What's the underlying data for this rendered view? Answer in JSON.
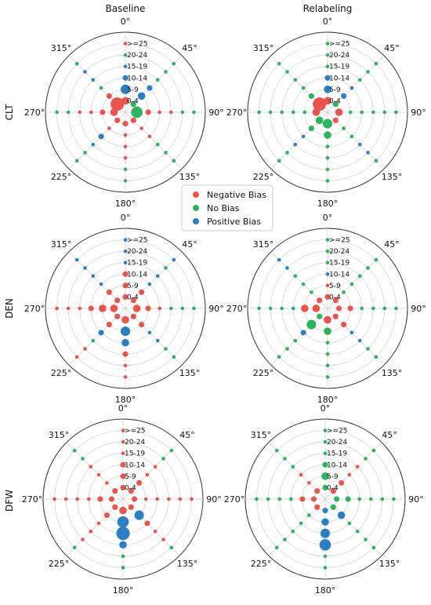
{
  "column_titles": [
    "Baseline",
    "Relabeling"
  ],
  "row_labels": [
    "CLT",
    "DEN",
    "DFW"
  ],
  "legend": [
    {
      "label": "Negative Bias",
      "color": "#e8554e"
    },
    {
      "label": "No Bias",
      "color": "#2db35d"
    },
    {
      "label": "Positive Bias",
      "color": "#2e7fc2"
    }
  ],
  "angle_labels": [
    "0°",
    "45°",
    "90°",
    "135°",
    "180°",
    "225°",
    "270°",
    "315°"
  ],
  "ring_labels": [
    "0-4",
    "5-9",
    "10-14",
    "15-19",
    "20-24",
    ">=25"
  ],
  "chart_data": [
    {
      "type": "scatter",
      "row": "CLT",
      "column": "Baseline",
      "points_encoding": "For each wind direction, values list the bias class per wind-speed ring (0-4 … >=25); size is the relative marker size.",
      "directions": [
        0,
        45,
        90,
        135,
        180,
        225,
        270,
        315
      ],
      "rings": [
        "0-4",
        "5-9",
        "10-14",
        "15-19",
        "20-24",
        ">=25"
      ],
      "classes": {
        "0": [
          "neg",
          "pos",
          "pos",
          "pos",
          "grn",
          "neg"
        ],
        "45": [
          "grn",
          "pos",
          "pos",
          "grn",
          "grn",
          "grn"
        ],
        "90": [
          "grn",
          "neg",
          "neg",
          "neg",
          "grn",
          "grn"
        ],
        "135": [
          "neg",
          "neg",
          "neg",
          "grn",
          "grn",
          "grn"
        ],
        "180": [
          "neg",
          "neg",
          "neg",
          "neg",
          "grn",
          "grn"
        ],
        "225": [
          "neg",
          "neg",
          "pos",
          "pos",
          "grn",
          "grn"
        ],
        "270": [
          "neg",
          "neg",
          "neg",
          "neg",
          "grn",
          "grn"
        ],
        "315": [
          "neg",
          "neg",
          "grn",
          "pos",
          "pos",
          "grn"
        ]
      },
      "sizes": {
        "0": [
          3,
          4,
          2,
          1,
          1,
          1
        ],
        "45": [
          2,
          3,
          2,
          1,
          1,
          1
        ],
        "90": [
          5,
          2,
          1,
          1,
          1,
          1
        ],
        "135": [
          2,
          1,
          1,
          1,
          1,
          1
        ],
        "180": [
          2,
          1,
          1,
          1,
          1,
          1
        ],
        "225": [
          2,
          1,
          2,
          1,
          1,
          1
        ],
        "270": [
          3,
          2,
          1,
          1,
          1,
          1
        ],
        "315": [
          6,
          2,
          1,
          1,
          1,
          1
        ]
      }
    },
    {
      "type": "scatter",
      "row": "CLT",
      "column": "Relabeling",
      "directions": [
        0,
        45,
        90,
        135,
        180,
        225,
        270,
        315
      ],
      "rings": [
        "0-4",
        "5-9",
        "10-14",
        "15-19",
        "20-24",
        ">=25"
      ],
      "classes": {
        "0": [
          "neg",
          "pos",
          "pos",
          "grn",
          "grn",
          "grn"
        ],
        "45": [
          "grn",
          "pos",
          "pos",
          "grn",
          "grn",
          "grn"
        ],
        "90": [
          "neg",
          "grn",
          "grn",
          "grn",
          "grn",
          "grn"
        ],
        "135": [
          "neg",
          "grn",
          "grn",
          "pos",
          "pos",
          "grn"
        ],
        "180": [
          "grn",
          "grn",
          "grn",
          "grn",
          "grn",
          "grn"
        ],
        "225": [
          "grn",
          "grn",
          "pos",
          "pos",
          "grn",
          "grn"
        ],
        "270": [
          "neg",
          "grn",
          "grn",
          "grn",
          "grn",
          "grn"
        ],
        "315": [
          "neg",
          "grn",
          "grn",
          "grn",
          "grn",
          "grn"
        ]
      },
      "sizes": {
        "0": [
          3,
          3,
          2,
          1,
          1,
          1
        ],
        "45": [
          2,
          2,
          1,
          1,
          1,
          1
        ],
        "90": [
          3,
          1,
          1,
          1,
          1,
          1
        ],
        "135": [
          2,
          1,
          1,
          1,
          1,
          1
        ],
        "180": [
          4,
          3,
          1,
          1,
          1,
          1
        ],
        "225": [
          3,
          2,
          1,
          1,
          1,
          1
        ],
        "270": [
          3,
          1,
          1,
          1,
          1,
          1
        ],
        "315": [
          6,
          2,
          1,
          1,
          1,
          1
        ]
      }
    },
    {
      "type": "scatter",
      "row": "DEN",
      "column": "Baseline",
      "directions": [
        0,
        45,
        90,
        135,
        180,
        225,
        270,
        315
      ],
      "rings": [
        "0-4",
        "5-9",
        "10-14",
        "15-19",
        "20-24",
        ">=25"
      ],
      "classes": {
        "0": [
          "neg",
          "neg",
          "neg",
          "pos",
          "pos",
          "pos"
        ],
        "45": [
          "neg",
          "neg",
          "pos",
          "pos",
          "grn",
          "pos"
        ],
        "90": [
          "neg",
          "neg",
          "neg",
          "grn",
          "grn",
          "grn"
        ],
        "135": [
          "neg",
          "neg",
          "pos",
          "pos",
          "grn",
          "grn"
        ],
        "180": [
          "neg",
          "pos",
          "pos",
          "neg",
          "neg",
          "neg"
        ],
        "225": [
          "neg",
          "neg",
          "pos",
          "grn",
          "neg",
          "neg"
        ],
        "270": [
          "neg",
          "neg",
          "neg",
          "neg",
          "neg",
          "neg"
        ],
        "315": [
          "neg",
          "neg",
          "pos",
          "pos",
          "pos",
          "pos"
        ]
      },
      "sizes": {
        "0": [
          2,
          2,
          2,
          1,
          1,
          1
        ],
        "45": [
          2,
          2,
          1,
          1,
          1,
          1
        ],
        "90": [
          3,
          2,
          1,
          1,
          1,
          1
        ],
        "135": [
          2,
          2,
          1,
          1,
          1,
          1
        ],
        "180": [
          3,
          4,
          3,
          2,
          1,
          1
        ],
        "225": [
          2,
          2,
          2,
          1,
          1,
          1
        ],
        "270": [
          3,
          3,
          2,
          1,
          1,
          1
        ],
        "315": [
          2,
          2,
          1,
          1,
          1,
          1
        ]
      }
    },
    {
      "type": "scatter",
      "row": "DEN",
      "column": "Relabeling",
      "directions": [
        0,
        45,
        90,
        135,
        180,
        225,
        270,
        315
      ],
      "rings": [
        "0-4",
        "5-9",
        "10-14",
        "15-19",
        "20-24",
        ">=25"
      ],
      "classes": {
        "0": [
          "neg",
          "neg",
          "pos",
          "grn",
          "grn",
          "grn"
        ],
        "45": [
          "neg",
          "grn",
          "grn",
          "grn",
          "grn",
          "grn"
        ],
        "90": [
          "neg",
          "neg",
          "grn",
          "grn",
          "grn",
          "grn"
        ],
        "135": [
          "neg",
          "neg",
          "pos",
          "pos",
          "grn",
          "grn"
        ],
        "180": [
          "neg",
          "grn",
          "grn",
          "grn",
          "grn",
          "grn"
        ],
        "225": [
          "grn",
          "grn",
          "pos",
          "grn",
          "grn",
          "grn"
        ],
        "270": [
          "neg",
          "neg",
          "grn",
          "grn",
          "grn",
          "grn"
        ],
        "315": [
          "neg",
          "grn",
          "grn",
          "grn",
          "pos",
          "pos"
        ]
      },
      "sizes": {
        "0": [
          2,
          1,
          1,
          1,
          1,
          1
        ],
        "45": [
          2,
          1,
          1,
          1,
          1,
          1
        ],
        "90": [
          2,
          2,
          1,
          1,
          1,
          1
        ],
        "135": [
          2,
          2,
          1,
          1,
          1,
          1
        ],
        "180": [
          3,
          3,
          1,
          1,
          1,
          1
        ],
        "225": [
          2,
          4,
          2,
          1,
          1,
          1
        ],
        "270": [
          3,
          3,
          1,
          1,
          1,
          1
        ],
        "315": [
          2,
          1,
          1,
          1,
          1,
          1
        ]
      }
    },
    {
      "type": "scatter",
      "row": "DFW",
      "column": "Baseline",
      "directions": [
        0,
        45,
        90,
        135,
        180,
        225,
        270,
        315
      ],
      "rings": [
        "0-4",
        "5-9",
        "10-14",
        "15-19",
        "20-24",
        ">=25"
      ],
      "classes": {
        "0": [
          "neg",
          "neg",
          "neg",
          "neg",
          "neg",
          "neg"
        ],
        "45": [
          "neg",
          "neg",
          "neg",
          "neg",
          "grn",
          "grn"
        ],
        "90": [
          "neg",
          "neg",
          "neg",
          "neg",
          "neg",
          "neg"
        ],
        "135": [
          "neg",
          "pos",
          "neg",
          "neg",
          "neg",
          "grn"
        ],
        "180": [
          "neg",
          "pos",
          "pos",
          "pos",
          "grn",
          "grn"
        ],
        "225": [
          "neg",
          "neg",
          "neg",
          "neg",
          "neg",
          "grn"
        ],
        "270": [
          "neg",
          "neg",
          "neg",
          "neg",
          "neg",
          "neg"
        ],
        "315": [
          "neg",
          "neg",
          "neg",
          "neg",
          "grn",
          "grn"
        ]
      },
      "sizes": {
        "0": [
          2,
          2,
          2,
          1,
          1,
          1
        ],
        "45": [
          2,
          2,
          1,
          1,
          1,
          1
        ],
        "90": [
          2,
          1,
          1,
          1,
          1,
          1
        ],
        "135": [
          2,
          4,
          2,
          1,
          1,
          1
        ],
        "180": [
          3,
          5,
          6,
          3,
          1,
          1
        ],
        "225": [
          2,
          2,
          1,
          1,
          1,
          1
        ],
        "270": [
          2,
          2,
          1,
          1,
          1,
          1
        ],
        "315": [
          2,
          1,
          1,
          1,
          1,
          1
        ]
      }
    },
    {
      "type": "scatter",
      "row": "DFW",
      "column": "Relabeling",
      "directions": [
        0,
        45,
        90,
        135,
        180,
        225,
        270,
        315
      ],
      "rings": [
        "0-4",
        "5-9",
        "10-14",
        "15-19",
        "20-24",
        ">=25"
      ],
      "classes": {
        "0": [
          "grn",
          "grn",
          "grn",
          "grn",
          "grn",
          "grn"
        ],
        "45": [
          "neg",
          "neg",
          "neg",
          "neg",
          "grn",
          "grn"
        ],
        "90": [
          "grn",
          "grn",
          "grn",
          "grn",
          "grn",
          "grn"
        ],
        "135": [
          "grn",
          "pos",
          "grn",
          "grn",
          "grn",
          "grn"
        ],
        "180": [
          "pos",
          "pos",
          "pos",
          "pos",
          "grn",
          "grn"
        ],
        "225": [
          "neg",
          "grn",
          "grn",
          "grn",
          "grn",
          "grn"
        ],
        "270": [
          "neg",
          "neg",
          "grn",
          "grn",
          "grn",
          "grn"
        ],
        "315": [
          "neg",
          "neg",
          "neg",
          "grn",
          "grn",
          "grn"
        ]
      },
      "sizes": {
        "0": [
          2,
          3,
          2,
          1,
          1,
          1
        ],
        "45": [
          2,
          2,
          1,
          1,
          1,
          1
        ],
        "90": [
          2,
          2,
          1,
          1,
          1,
          1
        ],
        "135": [
          2,
          3,
          1,
          1,
          1,
          1
        ],
        "180": [
          2,
          3,
          4,
          5,
          1,
          1
        ],
        "225": [
          2,
          1,
          1,
          1,
          1,
          1
        ],
        "270": [
          2,
          2,
          1,
          1,
          1,
          1
        ],
        "315": [
          2,
          1,
          1,
          1,
          1,
          1
        ]
      }
    }
  ]
}
